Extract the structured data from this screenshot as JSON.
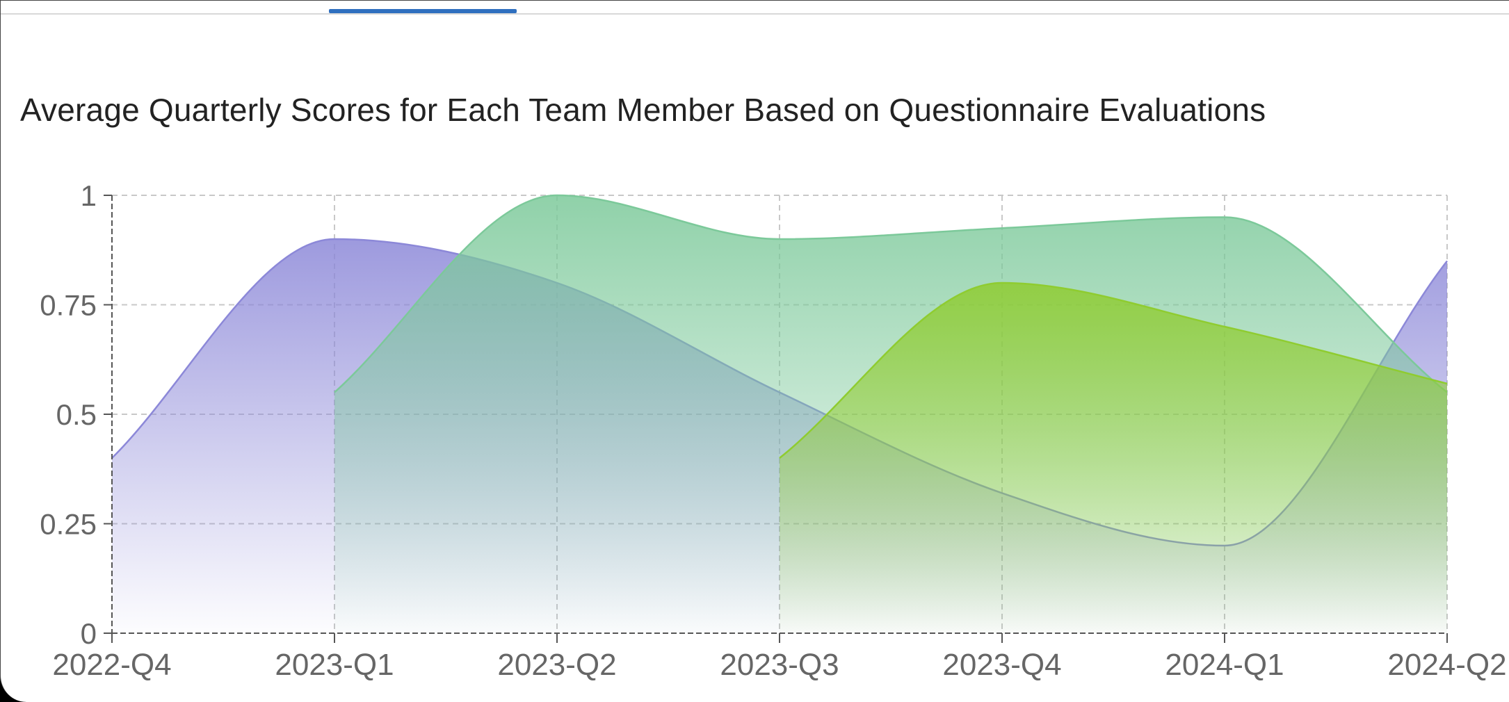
{
  "tabs": {
    "active_index": 1
  },
  "chart_data": {
    "type": "area",
    "title": "Average Quarterly Scores for Each Team Member Based on Questionnaire Evaluations",
    "xlabel": "",
    "ylabel": "",
    "categories": [
      "2022-Q4",
      "2023-Q1",
      "2023-Q2",
      "2023-Q3",
      "2023-Q4",
      "2024-Q1",
      "2024-Q2"
    ],
    "y_ticks": [
      "0",
      "0.25",
      "0.5",
      "0.75",
      "1"
    ],
    "ylim": [
      0,
      1
    ],
    "grid": true,
    "legend": "none",
    "smooth": true,
    "series": [
      {
        "values": [
          0.4,
          0.9,
          0.8,
          0.55,
          0.32,
          0.2,
          0.85
        ],
        "color": "#8c88d8"
      },
      {
        "values": [
          null,
          0.55,
          1.0,
          0.9,
          0.925,
          0.95,
          0.55
        ],
        "color": "#7cc99a"
      },
      {
        "values": [
          null,
          null,
          null,
          0.4,
          0.8,
          0.7,
          0.57
        ],
        "color": "#8fcc30"
      }
    ]
  }
}
